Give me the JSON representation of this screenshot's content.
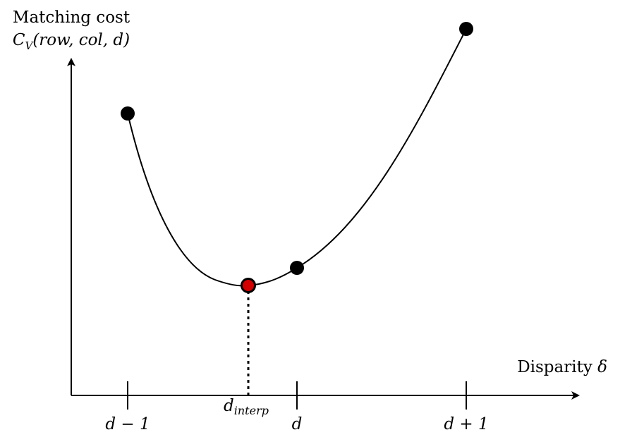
{
  "y_axis": {
    "label_line1": "Matching cost",
    "label_func": "C",
    "label_sub": "V",
    "label_args": "(row, col, d)"
  },
  "x_axis": {
    "label_text": "Disparity ",
    "label_symbol": "δ"
  },
  "ticks": {
    "d_minus_1": "d − 1",
    "d": "d",
    "d_plus_1": "d + 1"
  },
  "interp_label": {
    "base": "d",
    "sub": "interp"
  },
  "colors": {
    "axis": "#000000",
    "curve": "#000000",
    "point": "#000000",
    "interp_point": "#d40000"
  }
}
